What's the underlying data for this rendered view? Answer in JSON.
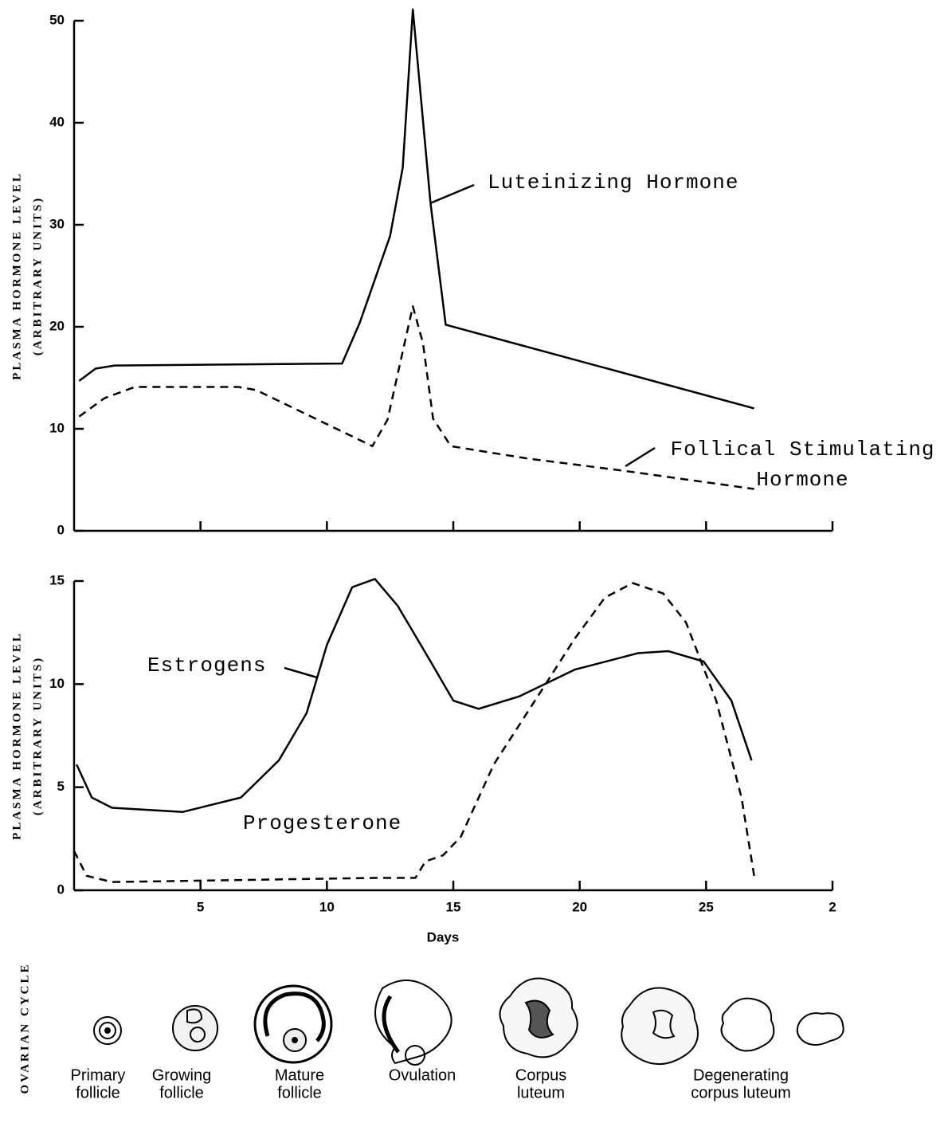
{
  "chart_data": [
    {
      "type": "line",
      "ylabel": "PLASMA HORMONE LEVEL",
      "ylabel_sub": "(ARBITRARY UNITS)",
      "xlim": [
        0,
        30
      ],
      "ylim": [
        0,
        50
      ],
      "xticks": [
        5,
        10,
        15,
        20,
        25,
        30
      ],
      "xtick_labels": false,
      "yticks": [
        0,
        10,
        20,
        30,
        40,
        50
      ],
      "series": [
        {
          "name": "Luteinizing Hormone",
          "color": "#000000",
          "style": "solid",
          "x": [
            0.2,
            0.85,
            1.6,
            10.6,
            11.3,
            12.5,
            13.0,
            13.4,
            14.1,
            14.7,
            26.9
          ],
          "values": [
            14.7,
            15.9,
            16.2,
            16.4,
            20.4,
            28.9,
            35.6,
            51.1,
            32.1,
            20.2,
            12.0
          ]
        },
        {
          "name": "Follical Stimulating Hormone",
          "color": "#000000",
          "style": "dashed",
          "x": [
            0.2,
            1.2,
            2.4,
            6.5,
            7.2,
            11.8,
            12.4,
            13.2,
            13.4,
            13.8,
            14.2,
            14.9,
            17.9,
            21.7,
            26.9
          ],
          "values": [
            11.2,
            13.0,
            14.1,
            14.1,
            13.8,
            8.3,
            10.9,
            19.8,
            22.0,
            18.4,
            11.0,
            8.3,
            7.1,
            5.9,
            4.1
          ]
        }
      ]
    },
    {
      "type": "line",
      "ylabel": "PLASMA HORMONE LEVEL",
      "ylabel_sub": "(ARBITRARY UNITS)",
      "xlabel": "Days",
      "xlim": [
        0,
        30
      ],
      "ylim": [
        0,
        15
      ],
      "xticks": [
        5,
        10,
        15,
        20,
        25,
        {
          "value": 30,
          "label": "2"
        }
      ],
      "xtick_labels": true,
      "yticks": [
        0,
        5,
        10,
        15
      ],
      "series": [
        {
          "name": "Estrogens",
          "color": "#000000",
          "style": "solid",
          "x": [
            0.1,
            0.7,
            1.5,
            4.3,
            6.6,
            8.1,
            9.2,
            10.0,
            11.0,
            11.9,
            12.8,
            14.1,
            15.0,
            16.0,
            17.6,
            19.8,
            22.3,
            23.5,
            24.9,
            26.0,
            26.8
          ],
          "values": [
            6.1,
            4.5,
            4.0,
            3.8,
            4.5,
            6.3,
            8.6,
            11.9,
            14.7,
            15.1,
            13.8,
            11.1,
            9.2,
            8.8,
            9.4,
            10.7,
            11.5,
            11.6,
            11.1,
            9.2,
            6.3
          ]
        },
        {
          "name": "Progesterone",
          "color": "#000000",
          "style": "dashed",
          "x": [
            0,
            0.5,
            1.5,
            11.9,
            13.5,
            13.9,
            14.6,
            15.3,
            16.6,
            18.6,
            19.8,
            21.0,
            22.1,
            23.3,
            24.2,
            25.4,
            26.4,
            26.9
          ],
          "values": [
            1.9,
            0.7,
            0.4,
            0.6,
            0.6,
            1.4,
            1.7,
            2.6,
            6.1,
            9.9,
            12.2,
            14.2,
            14.9,
            14.4,
            13.0,
            9.2,
            4.5,
            0.7
          ]
        }
      ]
    }
  ],
  "ovarian_cycle": {
    "title": "OVARIAN CYCLE",
    "stages": [
      [
        "Primary",
        "follicle"
      ],
      [
        "Growing",
        "follicle"
      ],
      [
        "Mature",
        "follicle"
      ],
      [
        "Ovulation"
      ],
      [
        "Corpus",
        "luteum"
      ],
      [
        "Degenerating",
        "corpus luteum"
      ]
    ]
  }
}
